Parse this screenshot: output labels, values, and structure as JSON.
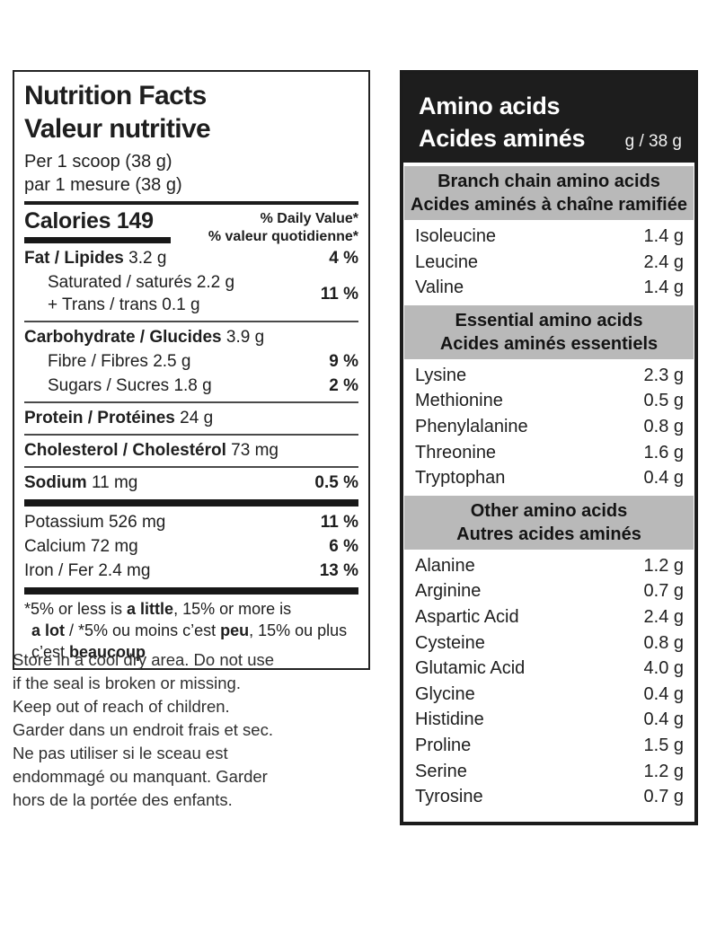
{
  "nutrition_facts": {
    "title_en": "Nutrition Facts",
    "title_fr": "Valeur nutritive",
    "serving_en": "Per 1 scoop (38 g)",
    "serving_fr": "par 1 mesure (38 g)",
    "calories_label": "Calories",
    "calories_value": "149",
    "daily_value_header_en": "% Daily Value*",
    "daily_value_header_fr": "% valeur quotidienne*",
    "fat": {
      "label": "Fat / Lipides",
      "amount": "3.2 g",
      "dv": "4 %"
    },
    "saturated": {
      "label": "Saturated / saturés",
      "amount": "2.2 g"
    },
    "trans": {
      "label": "+ Trans / trans",
      "amount": "0.1 g"
    },
    "saturated_trans_dv": "11 %",
    "carbohydrate": {
      "label": "Carbohydrate / Glucides",
      "amount": "3.9 g"
    },
    "fibre": {
      "label": "Fibre / Fibres",
      "amount": "2.5 g",
      "dv": "9 %"
    },
    "sugars": {
      "label": "Sugars / Sucres",
      "amount": "1.8 g",
      "dv": "2 %"
    },
    "protein": {
      "label": "Protein / Protéines",
      "amount": "24 g"
    },
    "cholesterol": {
      "label": "Cholesterol / Cholestérol",
      "amount": "73 mg"
    },
    "sodium": {
      "label": "Sodium",
      "amount": "11 mg",
      "dv": "0.5 %"
    },
    "potassium": {
      "label": "Potassium",
      "amount": "526 mg",
      "dv": "11 %"
    },
    "calcium": {
      "label": "Calcium",
      "amount": "72 mg",
      "dv": "6 %"
    },
    "iron": {
      "label": "Iron / Fer",
      "amount": "2.4 mg",
      "dv": "13 %"
    },
    "footnote": {
      "f1": "*5% or less is ",
      "f2": "a little",
      "f3": ", 15% or more is",
      "f4": "a lot",
      "f5": " / *5% ou moins c’est ",
      "f6": "peu",
      "f7": ", 15% ou plus",
      "f8": "c’est ",
      "f9": "beaucoup"
    }
  },
  "storage": {
    "en": "Store in a cool dry area. Do not use if the seal is broken or missing. Keep out of reach of children.",
    "fr": "Garder dans un endroit frais et sec. Ne pas utiliser si le sceau est endommagé ou manquant. Garder hors de la portée des enfants."
  },
  "amino_acids": {
    "title_en": "Amino acids",
    "title_fr": "Acides aminés",
    "unit": "g / 38 g",
    "groups": [
      {
        "heading_en": "Branch chain amino acids",
        "heading_fr": "Acides aminés à chaîne ramifiée",
        "rows": [
          {
            "name": "Isoleucine",
            "value": "1.4 g"
          },
          {
            "name": "Leucine",
            "value": "2.4 g"
          },
          {
            "name": "Valine",
            "value": "1.4 g"
          }
        ]
      },
      {
        "heading_en": "Essential amino acids",
        "heading_fr": "Acides aminés essentiels",
        "rows": [
          {
            "name": "Lysine",
            "value": "2.3 g"
          },
          {
            "name": "Methionine",
            "value": "0.5 g"
          },
          {
            "name": "Phenylalanine",
            "value": "0.8 g"
          },
          {
            "name": "Threonine",
            "value": "1.6 g"
          },
          {
            "name": "Tryptophan",
            "value": "0.4 g"
          }
        ]
      },
      {
        "heading_en": "Other amino acids",
        "heading_fr": "Autres acides aminés",
        "rows": [
          {
            "name": "Alanine",
            "value": "1.2 g"
          },
          {
            "name": "Arginine",
            "value": "0.7 g"
          },
          {
            "name": "Aspartic Acid",
            "value": "2.4 g"
          },
          {
            "name": "Cysteine",
            "value": "0.8 g"
          },
          {
            "name": "Glutamic Acid",
            "value": "4.0 g"
          },
          {
            "name": "Glycine",
            "value": "0.4 g"
          },
          {
            "name": "Histidine",
            "value": "0.4 g"
          },
          {
            "name": "Proline",
            "value": "1.5 g"
          },
          {
            "name": "Serine",
            "value": "1.2 g"
          },
          {
            "name": "Tyrosine",
            "value": "0.7 g"
          }
        ]
      }
    ]
  },
  "colors": {
    "ink": "#1e1e1e",
    "header_bg": "#1d1d1d",
    "banner_bg": "#b9b9b9"
  }
}
